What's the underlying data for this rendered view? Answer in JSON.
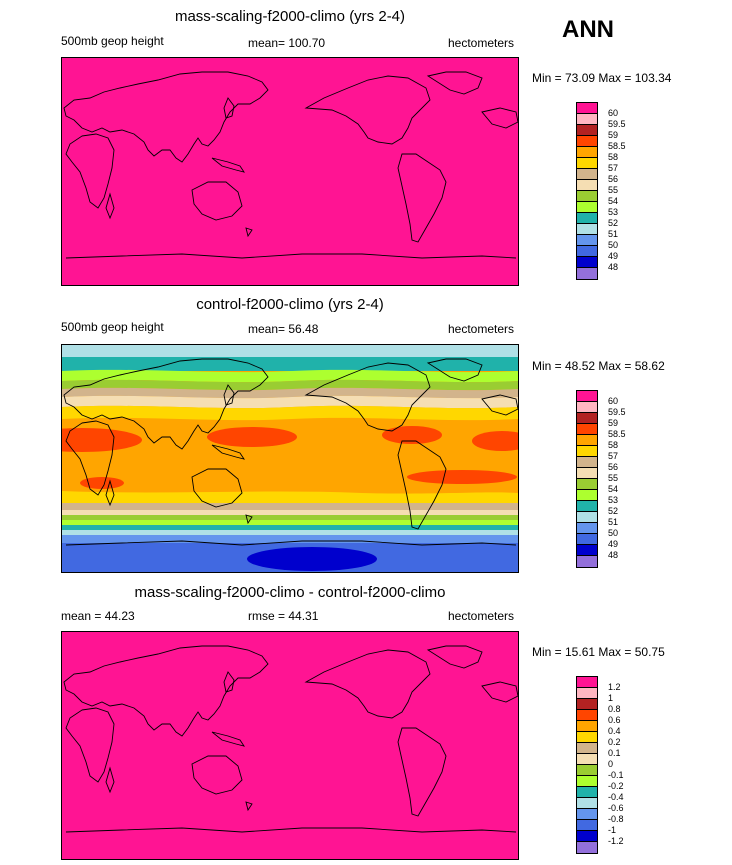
{
  "season": "ANN",
  "palette": [
    "#ff1493",
    "#ffb6c1",
    "#b22222",
    "#ff4500",
    "#ffa500",
    "#ffd700",
    "#d2b48c",
    "#f5deb3",
    "#9acd32",
    "#adff2f",
    "#20b2aa",
    "#b0e0e6",
    "#6495ed",
    "#4169e1",
    "#0000cd",
    "#9370db"
  ],
  "panels": [
    {
      "title": "mass-scaling-f2000-climo (yrs 2-4)",
      "left_label": "500mb geop height",
      "center_label": "mean= 100.70",
      "units": "hectometers",
      "minmax": "Min =  73.09 Max = 103.34",
      "levels": [
        "60",
        "59.5",
        "59",
        "58.5",
        "58",
        "57",
        "56",
        "55",
        "54",
        "53",
        "52",
        "51",
        "50",
        "49",
        "48"
      ]
    },
    {
      "title": "control-f2000-climo (yrs 2-4)",
      "left_label": "500mb geop height",
      "center_label": "mean=  56.48",
      "units": "hectometers",
      "minmax": "Min =  48.52 Max =  58.62",
      "levels": [
        "60",
        "59.5",
        "59",
        "58.5",
        "58",
        "57",
        "56",
        "55",
        "54",
        "53",
        "52",
        "51",
        "50",
        "49",
        "48"
      ]
    },
    {
      "title": "mass-scaling-f2000-climo - control-f2000-climo",
      "left_label": "mean =  44.23",
      "center_label": "rmse =  44.31",
      "units": "hectometers",
      "minmax": "Min =  15.61 Max =  50.75",
      "levels": [
        "1.2",
        "1",
        "0.8",
        "0.6",
        "0.4",
        "0.2",
        "0.1",
        "0",
        "-0.1",
        "-0.2",
        "-0.4",
        "-0.6",
        "-0.8",
        "-1",
        "-1.2"
      ]
    }
  ]
}
